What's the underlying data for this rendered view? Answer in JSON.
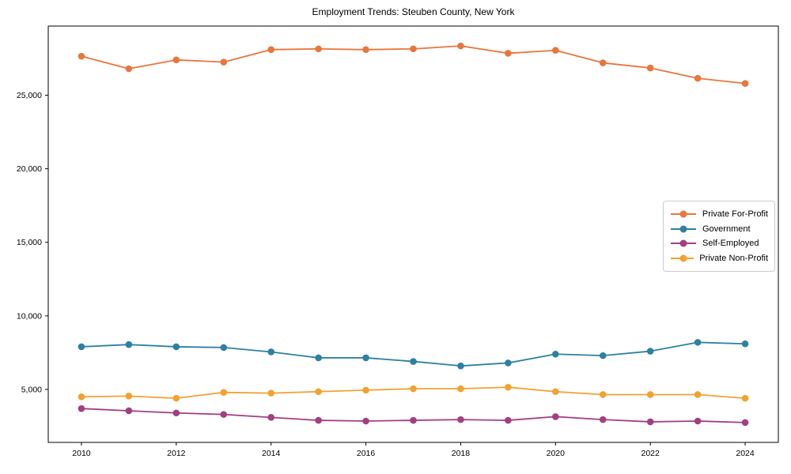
{
  "chart_data": {
    "type": "line",
    "title": "Employment Trends: Steuben County, New York",
    "xlabel": "",
    "ylabel": "",
    "grid": false,
    "legend_position": "right-middle",
    "x": [
      2010,
      2011,
      2012,
      2013,
      2014,
      2015,
      2016,
      2017,
      2018,
      2019,
      2020,
      2021,
      2022,
      2023,
      2024
    ],
    "series": [
      {
        "name": "Private For-Profit",
        "color": "#e8763d",
        "values": [
          27650,
          26800,
          27400,
          27250,
          28100,
          28150,
          28100,
          28150,
          28350,
          27850,
          28050,
          27200,
          26850,
          26150,
          25800
        ]
      },
      {
        "name": "Government",
        "color": "#2e80a2",
        "values": [
          7900,
          8050,
          7900,
          7850,
          7550,
          7150,
          7150,
          6900,
          6600,
          6800,
          7400,
          7300,
          7600,
          8200,
          8100
        ]
      },
      {
        "name": "Self-Employed",
        "color": "#a23f80",
        "values": [
          3700,
          3550,
          3400,
          3300,
          3100,
          2900,
          2850,
          2900,
          2950,
          2900,
          3150,
          2950,
          2800,
          2850,
          2750
        ]
      },
      {
        "name": "Private Non-Profit",
        "color": "#f2a230",
        "values": [
          4500,
          4550,
          4400,
          4800,
          4750,
          4850,
          4950,
          5050,
          5050,
          5150,
          4850,
          4650,
          4650,
          4650,
          4400
        ]
      }
    ],
    "xticks": [
      2010,
      2012,
      2014,
      2016,
      2018,
      2020,
      2022,
      2024
    ],
    "yticks": [
      5000,
      10000,
      15000,
      20000,
      25000
    ],
    "ytick_labels": [
      "5,000",
      "10,000",
      "15,000",
      "20,000",
      "25,000"
    ],
    "xlim": [
      2009.3,
      2024.7
    ],
    "ylim": [
      1400,
      29700
    ],
    "axis_color": "#000000",
    "marker": "circle",
    "marker_radius": 4.3,
    "line_width": 1.8
  }
}
